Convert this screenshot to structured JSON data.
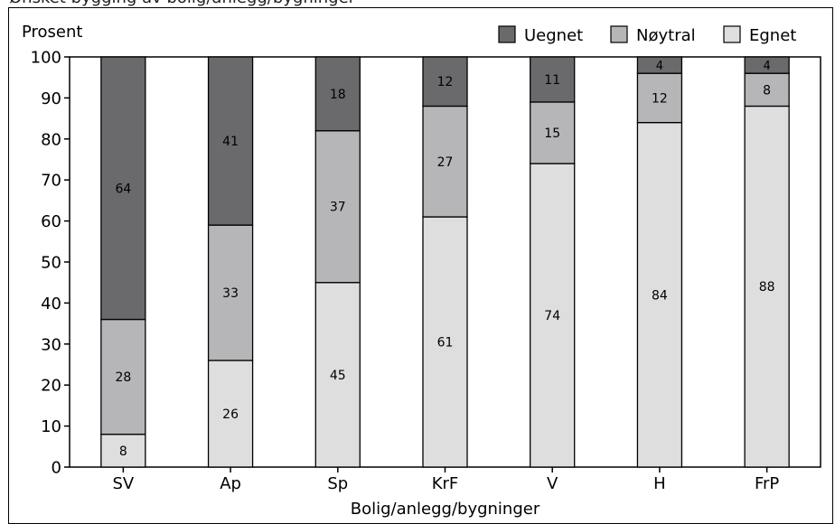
{
  "caption": "Ønsket bygging av bolig/anlegg/bygninger",
  "chart_data": {
    "type": "bar",
    "stacked": true,
    "title": "",
    "xlabel": "Bolig/anlegg/bygninger",
    "ylabel": "Prosent",
    "ylim": [
      0,
      100
    ],
    "y_ticks": [
      0,
      10,
      20,
      30,
      40,
      50,
      60,
      70,
      80,
      90,
      100
    ],
    "categories": [
      "SV",
      "Ap",
      "Sp",
      "KrF",
      "V",
      "H",
      "FrP"
    ],
    "series": [
      {
        "name": "Egnet",
        "color": "#dedede",
        "values": [
          8,
          26,
          45,
          61,
          74,
          84,
          88
        ]
      },
      {
        "name": "Nøytral",
        "color": "#b6b6b8",
        "values": [
          28,
          33,
          37,
          27,
          15,
          12,
          8
        ]
      },
      {
        "name": "Uegnet",
        "color": "#6a6a6d",
        "values": [
          64,
          41,
          18,
          12,
          11,
          4,
          4
        ]
      }
    ],
    "legend": {
      "placement": "top-right",
      "order": [
        "Uegnet",
        "Nøytral",
        "Egnet"
      ]
    },
    "grid": false
  }
}
